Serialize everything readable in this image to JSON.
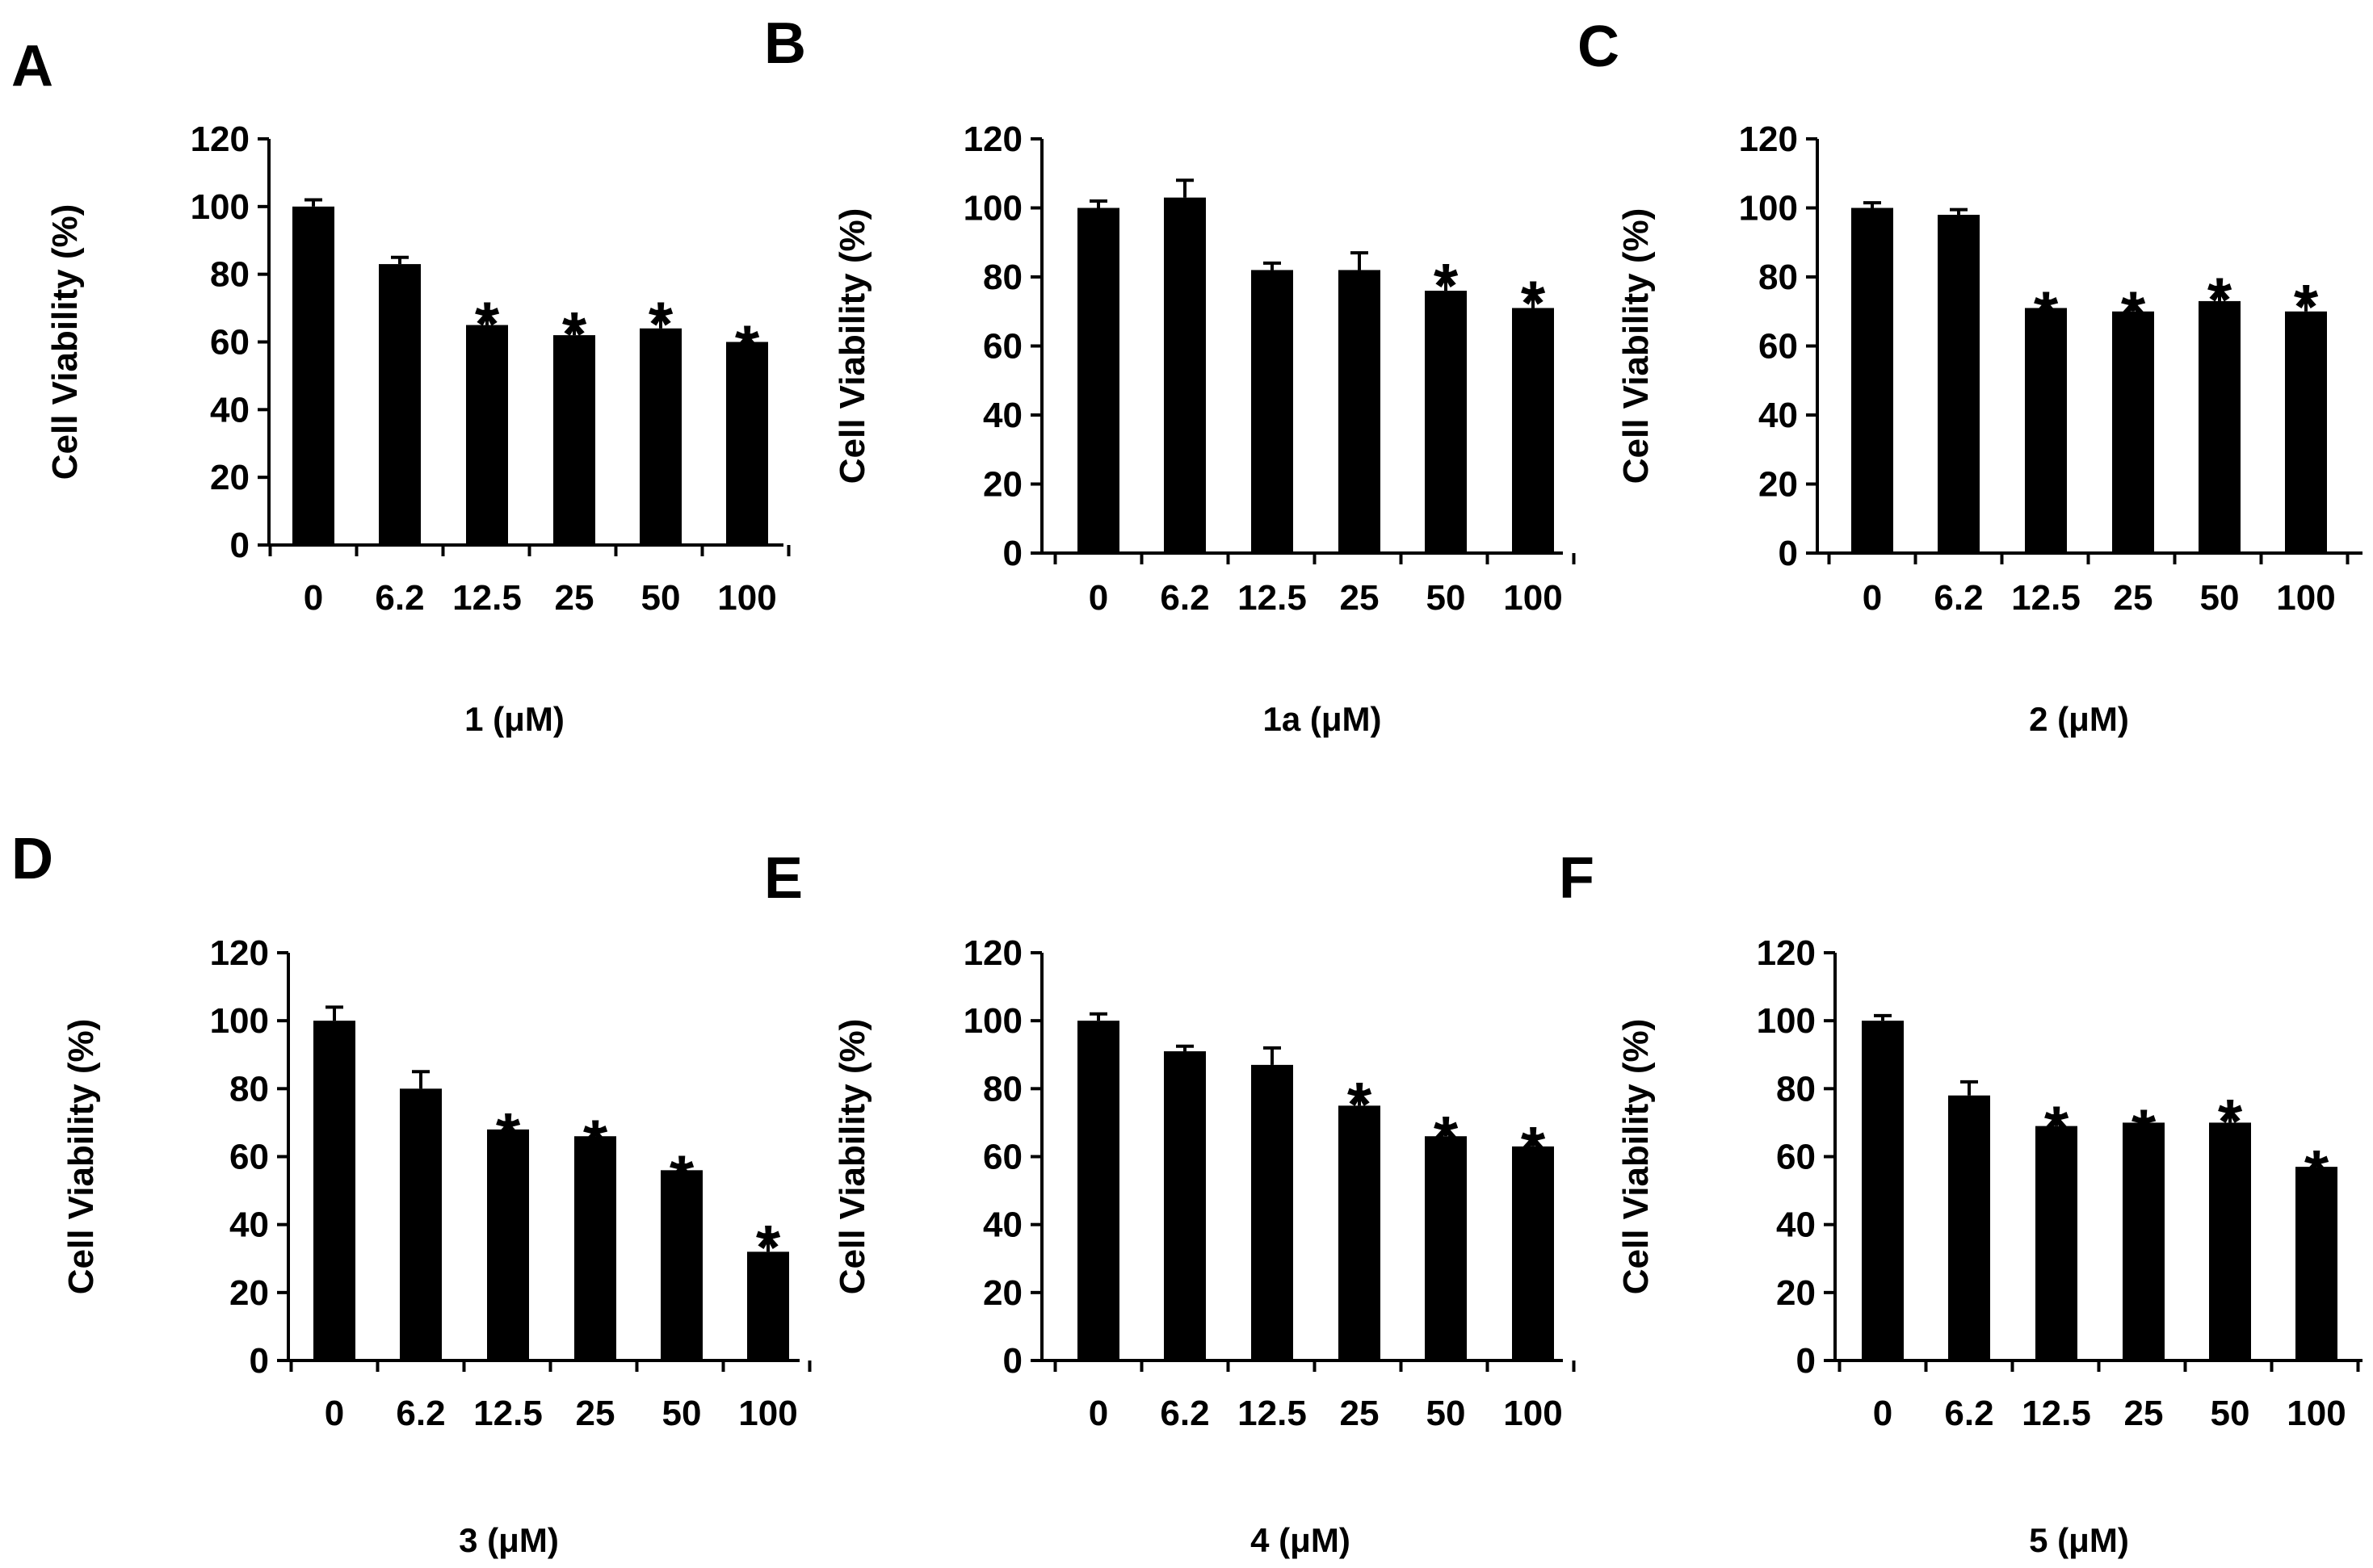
{
  "figure": {
    "panels": [
      "A",
      "B",
      "C",
      "D",
      "E",
      "F"
    ]
  },
  "chart_data": [
    {
      "panel": "A",
      "type": "bar",
      "categories": [
        "0",
        "6.2",
        "12.5",
        "25",
        "50",
        "100"
      ],
      "values": [
        100,
        83,
        65,
        62,
        64,
        60
      ],
      "errors": [
        2,
        2,
        4,
        4,
        5,
        2
      ],
      "significant": [
        false,
        false,
        true,
        true,
        true,
        true
      ],
      "significance_marker": "*",
      "xlabel": "1 (μM)",
      "ylabel": "Cell Viability (%)",
      "ylim": [
        0,
        120
      ],
      "yticks": [
        0,
        20,
        40,
        60,
        80,
        100,
        120
      ]
    },
    {
      "panel": "B",
      "type": "bar",
      "categories": [
        "0",
        "6.2",
        "12.5",
        "25",
        "50",
        "100"
      ],
      "values": [
        100,
        103,
        82,
        82,
        76,
        71
      ],
      "errors": [
        2,
        5,
        2,
        5,
        5,
        5
      ],
      "significant": [
        false,
        false,
        false,
        false,
        true,
        true
      ],
      "significance_marker": "*",
      "xlabel": "1a (μM)",
      "ylabel": "Cell Viability (%)",
      "ylim": [
        0,
        120
      ],
      "yticks": [
        0,
        20,
        40,
        60,
        80,
        100,
        120
      ]
    },
    {
      "panel": "C",
      "type": "bar",
      "categories": [
        "0",
        "6.2",
        "12.5",
        "25",
        "50",
        "100"
      ],
      "values": [
        100,
        98,
        71,
        70,
        73,
        70
      ],
      "errors": [
        1.5,
        1.5,
        2,
        3,
        4,
        5
      ],
      "significant": [
        false,
        false,
        true,
        true,
        true,
        true
      ],
      "significance_marker": "*",
      "xlabel": "2 (μM)",
      "ylabel": "Cell Viability (%)",
      "ylim": [
        0,
        120
      ],
      "yticks": [
        0,
        20,
        40,
        60,
        80,
        100,
        120
      ]
    },
    {
      "panel": "D",
      "type": "bar",
      "categories": [
        "0",
        "6.2",
        "12.5",
        "25",
        "50",
        "100"
      ],
      "values": [
        100,
        80,
        68,
        66,
        56,
        32
      ],
      "errors": [
        4,
        5,
        2,
        2,
        1.5,
        5
      ],
      "significant": [
        false,
        false,
        true,
        true,
        true,
        true
      ],
      "significance_marker": "*",
      "xlabel": "3 (μM)",
      "ylabel": "Cell Viability (%)",
      "ylim": [
        0,
        120
      ],
      "yticks": [
        0,
        20,
        40,
        60,
        80,
        100,
        120
      ]
    },
    {
      "panel": "E",
      "type": "bar",
      "categories": [
        "0",
        "6.2",
        "12.5",
        "25",
        "50",
        "100"
      ],
      "values": [
        100,
        91,
        87,
        75,
        66,
        63
      ],
      "errors": [
        2,
        1.5,
        5,
        4,
        3,
        3
      ],
      "significant": [
        false,
        false,
        false,
        true,
        true,
        true
      ],
      "significance_marker": "*",
      "xlabel": "4 (μM)",
      "ylabel": "Cell Viability (%)",
      "ylim": [
        0,
        120
      ],
      "yticks": [
        0,
        20,
        40,
        60,
        80,
        100,
        120
      ]
    },
    {
      "panel": "F",
      "type": "bar",
      "categories": [
        "0",
        "6.2",
        "12.5",
        "25",
        "50",
        "100"
      ],
      "values": [
        100,
        78,
        69,
        70,
        70,
        57
      ],
      "errors": [
        1.5,
        4,
        3,
        1,
        4,
        2
      ],
      "significant": [
        false,
        false,
        true,
        true,
        true,
        true
      ],
      "significance_marker": "*",
      "xlabel": "5 (μM)",
      "ylabel": "Cell Viability (%)",
      "ylim": [
        0,
        120
      ],
      "yticks": [
        0,
        20,
        40,
        60,
        80,
        100,
        120
      ]
    }
  ]
}
